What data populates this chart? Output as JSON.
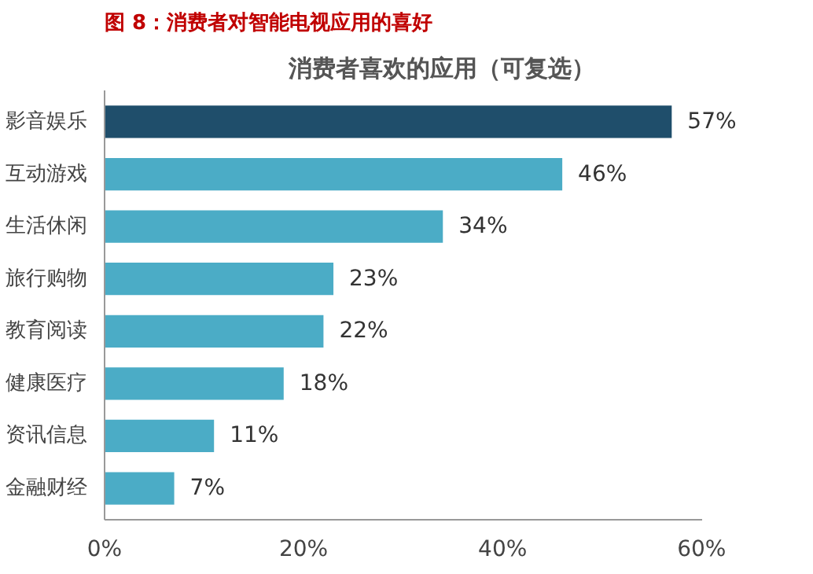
{
  "chart_data": {
    "type": "bar",
    "orientation": "horizontal",
    "title": "图 8：消费者对智能电视应用的喜好",
    "subtitle": "消费者喜欢的应用（可复选）",
    "categories": [
      "影音娱乐",
      "互动游戏",
      "生活休闲",
      "旅行购物",
      "教育阅读",
      "健康医疗",
      "资讯信息",
      "金融财经"
    ],
    "values": [
      57,
      46,
      34,
      23,
      22,
      18,
      11,
      7
    ],
    "colors": [
      "#1f4e6b",
      "#4bacc6",
      "#4bacc6",
      "#4bacc6",
      "#4bacc6",
      "#4bacc6",
      "#4bacc6",
      "#4bacc6"
    ],
    "value_labels": [
      "57%",
      "46%",
      "34%",
      "23%",
      "22%",
      "18%",
      "11%",
      "7%"
    ],
    "xlim": [
      0,
      60
    ],
    "xticks": [
      {
        "value": 0,
        "label": "0%"
      },
      {
        "value": 20,
        "label": "20%"
      },
      {
        "value": 40,
        "label": "40%"
      },
      {
        "value": 60,
        "label": "60%"
      }
    ],
    "grid": false
  }
}
